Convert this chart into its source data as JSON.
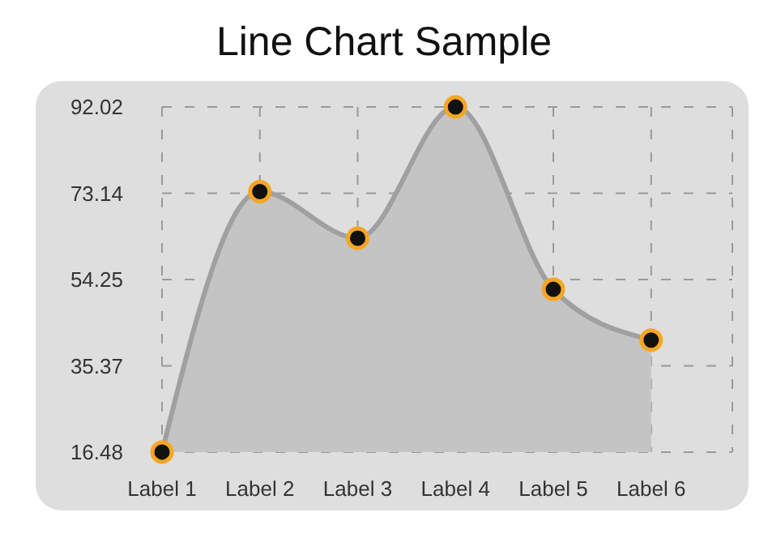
{
  "chart_data": {
    "type": "area",
    "title": "Line Chart Sample",
    "categories": [
      "Label 1",
      "Label 2",
      "Label 3",
      "Label 4",
      "Label 5",
      "Label 6"
    ],
    "series": [
      {
        "color": "#a0a0a0",
        "values": [
          16.5,
          73.5,
          63.3,
          92.0,
          52.1,
          41.0
        ]
      }
    ],
    "ylim": [
      16.48,
      92.02
    ],
    "yticks": [
      16.48,
      35.37,
      54.25,
      73.14,
      92.02
    ],
    "grid": true,
    "marker": "circle"
  }
}
